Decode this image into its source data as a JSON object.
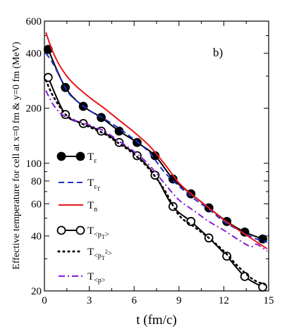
{
  "chart_data": {
    "type": "line",
    "annotation": "b)",
    "xlabel": "t (fm/c)",
    "ylabel": "Effective temperature for cell at x=0 fm & y=0 fm (MeV)",
    "xlim": [
      0,
      15
    ],
    "ylim": [
      20,
      600
    ],
    "yscale": "log",
    "x_ticks": [
      0,
      3,
      6,
      9,
      12,
      15
    ],
    "y_ticks": [
      20,
      40,
      60,
      80,
      100,
      200,
      400,
      600
    ],
    "grid": false,
    "legend_position": "left-middle",
    "series": [
      {
        "name": "T_ε",
        "label_main": "T",
        "label_sub": "ε",
        "color": "#000000",
        "style": "solid-filled-circle",
        "x": [
          0.25,
          1.4,
          2.6,
          3.8,
          5.0,
          6.2,
          7.4,
          8.6,
          9.8,
          11.0,
          12.2,
          13.4,
          14.6
        ],
        "y": [
          420,
          260,
          205,
          178,
          150,
          130,
          110,
          82,
          68,
          57,
          48,
          42,
          38.5
        ]
      },
      {
        "name": "T_ε_T",
        "label_main": "T",
        "label_sub": "ε",
        "label_subsub": "T",
        "color": "#1a2fd0",
        "style": "dashed",
        "x": [
          0.1,
          0.5,
          1.0,
          1.5,
          2.0,
          3.0,
          4.0,
          5.0,
          6.0,
          7.0,
          8.0,
          9.0,
          10.0,
          11.0,
          12.0,
          13.0,
          14.0,
          14.9
        ],
        "y": [
          400,
          360,
          300,
          250,
          225,
          195,
          175,
          155,
          135,
          115,
          90,
          75,
          64,
          56,
          48,
          43,
          39,
          37
        ]
      },
      {
        "name": "T_n",
        "label_main": "T",
        "label_sub": "n",
        "color": "#e8161c",
        "style": "solid",
        "x": [
          0.1,
          0.5,
          1.0,
          1.5,
          2.0,
          3.0,
          4.0,
          5.0,
          6.0,
          7.0,
          8.0,
          9.0,
          10.0,
          11.0,
          12.0,
          13.0,
          14.0,
          14.9
        ],
        "y": [
          520,
          420,
          345,
          300,
          270,
          230,
          200,
          172,
          148,
          125,
          100,
          78,
          66,
          57,
          49,
          43,
          38,
          34
        ]
      },
      {
        "name": "T_<p_T>",
        "label_main": "T",
        "label_sub": "<p",
        "label_subsub": "T",
        "label_sub_end": ">",
        "color": "#000000",
        "style": "solid-open-circle",
        "x": [
          0.25,
          1.4,
          2.6,
          3.8,
          5.0,
          6.2,
          7.4,
          8.6,
          9.8,
          11.0,
          12.2,
          13.4,
          14.6
        ],
        "y": [
          295,
          185,
          165,
          150,
          130,
          110,
          86,
          58,
          48,
          39,
          31,
          24,
          21
        ]
      },
      {
        "name": "T_<p_T^2>",
        "label_main": "T",
        "label_sub": "<p",
        "label_subsub": "T",
        "label_sup": "2",
        "label_sub_end": ">",
        "color": "#000000",
        "style": "dotted",
        "x": [
          0.1,
          0.5,
          1.0,
          1.5,
          2.0,
          3.0,
          4.0,
          5.0,
          6.0,
          7.0,
          8.0,
          9.0,
          10.0,
          11.0,
          12.0,
          13.0,
          14.0,
          14.9
        ],
        "y": [
          285,
          240,
          205,
          182,
          172,
          158,
          145,
          128,
          112,
          93,
          72,
          52,
          45,
          39,
          33,
          27,
          23,
          21.5
        ]
      },
      {
        "name": "T_<p>",
        "label_main": "T",
        "label_sub": "<p>",
        "color": "#8a1ad8",
        "style": "dash-dot",
        "x": [
          0.1,
          0.5,
          1.0,
          1.5,
          2.0,
          3.0,
          4.0,
          5.0,
          6.0,
          7.0,
          8.0,
          9.0,
          10.0,
          11.0,
          12.0,
          13.0,
          13.8,
          14.2,
          14.9
        ],
        "y": [
          250,
          215,
          190,
          178,
          172,
          162,
          150,
          132,
          116,
          98,
          78,
          63,
          55,
          48,
          43,
          38,
          35,
          36,
          33
        ]
      }
    ]
  }
}
